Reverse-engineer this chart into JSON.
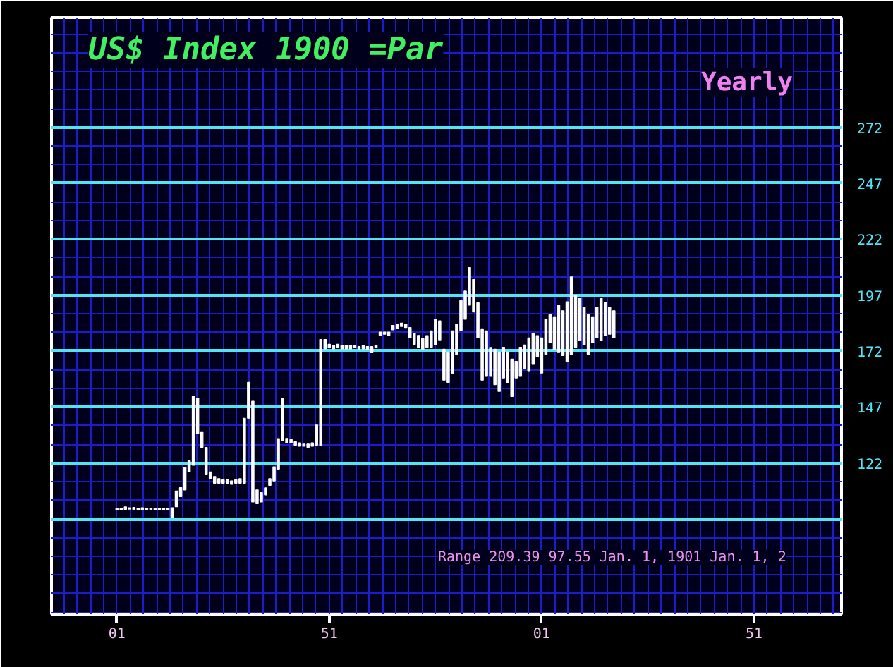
{
  "chart_data": {
    "type": "bar",
    "title": "US$ Index 1900 =Par",
    "subtitle": "Yearly",
    "color": "#ffffff",
    "x": [
      1901,
      1902,
      1903,
      1904,
      1905,
      1906,
      1907,
      1908,
      1909,
      1910,
      1911,
      1912,
      1913,
      1914,
      1915,
      1916,
      1917,
      1918,
      1919,
      1920,
      1921,
      1922,
      1923,
      1924,
      1925,
      1926,
      1927,
      1928,
      1929,
      1930,
      1931,
      1932,
      1933,
      1934,
      1935,
      1936,
      1937,
      1938,
      1939,
      1940,
      1941,
      1942,
      1943,
      1944,
      1945,
      1946,
      1947,
      1948,
      1949,
      1950,
      1951,
      1952,
      1953,
      1954,
      1955,
      1956,
      1957,
      1958,
      1959,
      1960,
      1961,
      1962,
      1963,
      1964,
      1965,
      1966,
      1967,
      1968,
      1969,
      1970,
      1971,
      1972,
      1973,
      1974,
      1975,
      1976,
      1977,
      1978,
      1979,
      1980,
      1981,
      1982,
      1983,
      1984,
      1985,
      1986,
      1987,
      1988,
      1989,
      1990,
      1991,
      1992,
      1993,
      1994,
      1995,
      1996,
      1997,
      1998,
      1999,
      2000,
      2001,
      2002,
      2003,
      2004,
      2005,
      2006,
      2007,
      2008,
      2009,
      2010,
      2011,
      2012,
      2013,
      2014,
      2015,
      2016,
      2017,
      2018
    ],
    "base": [
      101.0,
      101.2,
      101.3,
      101.4,
      101.2,
      101.0,
      101.1,
      101.3,
      101.2,
      101.0,
      101.1,
      101.2,
      101.0,
      97.55,
      102.5,
      107,
      110,
      118,
      121,
      135,
      129,
      117,
      115,
      113,
      113,
      113,
      113,
      112.5,
      113,
      113,
      113,
      142,
      104.6,
      103.8,
      104.6,
      107.8,
      112,
      114,
      119.3,
      131.9,
      131,
      131,
      130,
      129.5,
      129.5,
      129,
      129.5,
      130,
      129.7,
      173,
      173.5,
      173,
      173.5,
      173,
      173,
      173,
      173.5,
      173,
      173,
      172.5,
      171.5,
      173.5,
      179,
      179.5,
      179,
      181.5,
      182,
      183,
      182.5,
      178,
      175,
      173.7,
      172.8,
      173.7,
      173.7,
      174.7,
      177,
      159,
      158,
      162,
      170.5,
      181,
      186.2,
      192.5,
      189.4,
      178,
      159,
      161,
      161,
      157,
      154,
      160,
      158,
      151.7,
      160,
      161,
      164.3,
      163.2,
      166.4,
      169.5,
      162.2,
      170.5,
      175.8,
      172.6,
      171.6,
      170,
      167.4,
      170.5,
      173.7,
      176.8,
      174.7,
      170.5,
      175.8,
      177.9,
      176.8,
      178.9,
      179.5,
      178
    ],
    "values": [
      0.6,
      0.6,
      1.1,
      0.6,
      1.0,
      0.8,
      0.9,
      0.6,
      0.6,
      0.7,
      0.7,
      0.7,
      0.8,
      4.5,
      7,
      4,
      10,
      5,
      31,
      16,
      7,
      12,
      3,
      3,
      2,
      1.5,
      1.5,
      1.5,
      1.5,
      2,
      29,
      16,
      45,
      6.2,
      4.2,
      3.1,
      3,
      6.3,
      13.6,
      18.8,
      2,
      1.5,
      1.5,
      1.5,
      1,
      1.5,
      1.5,
      9,
      47.5,
      4.2,
      1.5,
      1.5,
      1.5,
      1.5,
      1.5,
      1.5,
      1,
      1,
      1.5,
      1.5,
      2.5,
      1,
      1.5,
      1,
      1.5,
      2,
      2,
      1.5,
      1.5,
      4.5,
      5,
      5.3,
      5,
      5.2,
      7.3,
      11.5,
      8.5,
      13.8,
      13.6,
      19,
      13.5,
      13.8,
      12.6,
      16.9,
      14.6,
      15.6,
      23,
      20,
      12.6,
      15.8,
      17.6,
      13.7,
      13.6,
      16.7,
      7.4,
      12.7,
      10.4,
      14.7,
      13.5,
      9.4,
      15.7,
      15.7,
      12.5,
      14.7,
      20.9,
      20,
      26.6,
      34.6,
      23,
      18.8,
      16.8,
      17.8,
      11.5,
      13.6,
      18.8,
      14.7,
      12,
      12
    ],
    "xlim": [
      1885.6,
      2071.6
    ],
    "xticks": [
      {
        "value": 1901,
        "label": "01"
      },
      {
        "value": 1951,
        "label": "51"
      },
      {
        "value": 2001,
        "label": "01"
      },
      {
        "value": 2051,
        "label": "51"
      }
    ],
    "ylim": [
      54.5,
      321
    ],
    "yticks": [
      {
        "value": 97,
        "label": null
      },
      122,
      147,
      172,
      197,
      222,
      247,
      272
    ],
    "grid": true,
    "annotations": [
      "Range 209.39 97.55 Jan. 1, 1901 Jan. 1, 2"
    ]
  }
}
